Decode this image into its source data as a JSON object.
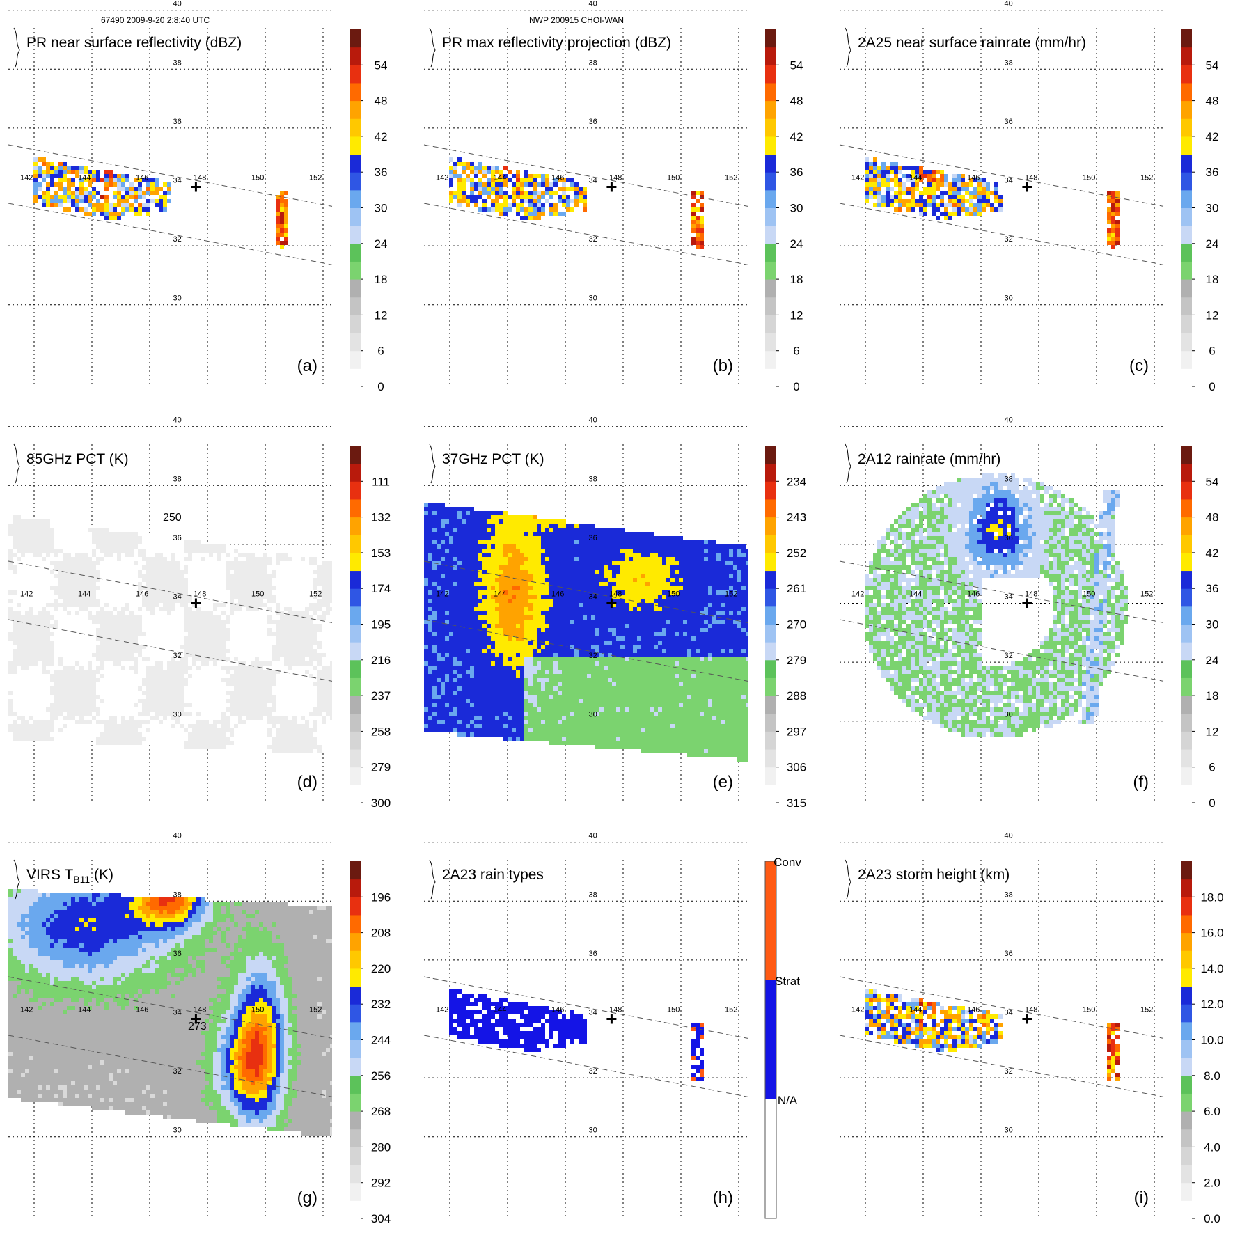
{
  "header": {
    "orbit_info": "67490 2009-9-20 2:8:40 UTC",
    "storm_info": "NWP 200915 CHOI-WAN"
  },
  "colors": {
    "ramp_gray": [
      "#f7f7f7",
      "#d9d9d9",
      "#b0b0b0"
    ],
    "ramp_green": [
      "#7bd36f",
      "#5cc25a"
    ],
    "ramp_blue": [
      "#c8d8f5",
      "#6aa8ee",
      "#3a6fe0",
      "#1a2ad8"
    ],
    "ramp_warm": [
      "#ffea00",
      "#ffa300",
      "#ff6a00",
      "#e83010",
      "#b81a0c",
      "#6b1a10"
    ],
    "rain_type_colors": [
      "#ffffff",
      "#1414e6",
      "#ff5a14"
    ]
  },
  "chart_data": [
    {
      "type": "heatmap",
      "panel_label": "(a)",
      "title": "PR near surface reflectivity (dBZ)",
      "field": "pr_near_surface",
      "colorbar_ticks": [
        "0",
        "6",
        "12",
        "18",
        "24",
        "30",
        "36",
        "42",
        "48",
        "54"
      ],
      "colorbar_range": [
        0,
        60
      ],
      "lat_ticks": [
        "30",
        "32",
        "34",
        "36",
        "38",
        "40"
      ],
      "lon_ticks": [
        "142",
        "144",
        "146",
        "148",
        "150",
        "152"
      ],
      "contour_labels": [],
      "storm_center": [
        147.6,
        34.0
      ]
    },
    {
      "type": "heatmap",
      "panel_label": "(b)",
      "title": "PR max reflectivity projection (dBZ)",
      "field": "pr_max_projection",
      "colorbar_ticks": [
        "0",
        "6",
        "12",
        "18",
        "24",
        "30",
        "36",
        "42",
        "48",
        "54"
      ],
      "colorbar_range": [
        0,
        60
      ],
      "lat_ticks": [
        "30",
        "32",
        "34",
        "36",
        "38",
        "40"
      ],
      "lon_ticks": [
        "142",
        "144",
        "146",
        "148",
        "150",
        "152"
      ],
      "contour_labels": [],
      "storm_center": [
        147.6,
        34.0
      ]
    },
    {
      "type": "heatmap",
      "panel_label": "(c)",
      "title": "2A25 near surface rainrate (mm/hr)",
      "field": "rainrate_2a25",
      "colorbar_ticks": [
        "0",
        "6",
        "12",
        "18",
        "24",
        "30",
        "36",
        "42",
        "48",
        "54"
      ],
      "colorbar_range": [
        0,
        60
      ],
      "lat_ticks": [
        "30",
        "32",
        "34",
        "36",
        "38",
        "40"
      ],
      "lon_ticks": [
        "142",
        "144",
        "146",
        "148",
        "150",
        "152"
      ],
      "contour_labels": [],
      "storm_center": [
        147.6,
        34.0
      ]
    },
    {
      "type": "heatmap",
      "panel_label": "(d)",
      "title": "85GHz PCT (K)",
      "field": "pct85",
      "colorbar_ticks": [
        "300",
        "279",
        "258",
        "237",
        "216",
        "195",
        "174",
        "153",
        "132",
        "111"
      ],
      "colorbar_range": [
        300,
        90
      ],
      "lat_ticks": [
        "30",
        "32",
        "34",
        "36",
        "38",
        "40"
      ],
      "lon_ticks": [
        "142",
        "144",
        "146",
        "148",
        "150",
        "152"
      ],
      "contour_labels": [
        "250"
      ],
      "storm_center": [
        147.6,
        34.0
      ]
    },
    {
      "type": "heatmap",
      "panel_label": "(e)",
      "title": "37GHz PCT (K)",
      "field": "pct37",
      "colorbar_ticks": [
        "315",
        "306",
        "297",
        "288",
        "279",
        "270",
        "261",
        "252",
        "243",
        "234"
      ],
      "colorbar_range": [
        315,
        225
      ],
      "lat_ticks": [
        "30",
        "32",
        "34",
        "36",
        "38",
        "40"
      ],
      "lon_ticks": [
        "142",
        "144",
        "146",
        "148",
        "150",
        "152"
      ],
      "contour_labels": [],
      "storm_center": [
        147.6,
        34.0
      ]
    },
    {
      "type": "heatmap",
      "panel_label": "(f)",
      "title": "2A12 rainrate (mm/hr)",
      "field": "rainrate_2a12",
      "colorbar_ticks": [
        "0",
        "6",
        "12",
        "18",
        "24",
        "30",
        "36",
        "42",
        "48",
        "54"
      ],
      "colorbar_range": [
        0,
        60
      ],
      "lat_ticks": [
        "30",
        "32",
        "34",
        "36",
        "38",
        "40"
      ],
      "lon_ticks": [
        "142",
        "144",
        "146",
        "148",
        "150",
        "152"
      ],
      "contour_labels": [],
      "storm_center": [
        147.6,
        34.0
      ]
    },
    {
      "type": "heatmap",
      "panel_label": "(g)",
      "title": "VIRS T",
      "title_subscript": "B11",
      "title_suffix": " (K)",
      "field": "virs_tb11",
      "colorbar_ticks": [
        "304",
        "292",
        "280",
        "268",
        "256",
        "244",
        "232",
        "220",
        "208",
        "196"
      ],
      "colorbar_range": [
        304,
        184
      ],
      "lat_ticks": [
        "30",
        "32",
        "34",
        "36",
        "38",
        "40"
      ],
      "lon_ticks": [
        "142",
        "144",
        "146",
        "148",
        "150",
        "152"
      ],
      "contour_labels": [
        "273"
      ],
      "storm_center": [
        147.6,
        34.0
      ]
    },
    {
      "type": "heatmap",
      "panel_label": "(h)",
      "title": "2A23 rain types",
      "field": "rain_type",
      "colorbar_ticks": [
        "N/A",
        "Strat",
        "Conv"
      ],
      "colorbar_range": [
        0,
        2
      ],
      "lat_ticks": [
        "30",
        "32",
        "34",
        "36",
        "38",
        "40"
      ],
      "lon_ticks": [
        "142",
        "144",
        "146",
        "148",
        "150",
        "152"
      ],
      "contour_labels": [],
      "storm_center": [
        147.6,
        34.0
      ]
    },
    {
      "type": "heatmap",
      "panel_label": "(i)",
      "title": "2A23 storm height (km)",
      "field": "storm_height",
      "colorbar_ticks": [
        "0.0",
        "2.0",
        "4.0",
        "6.0",
        "8.0",
        "10.0",
        "12.0",
        "14.0",
        "16.0",
        "18.0"
      ],
      "colorbar_range": [
        0,
        20
      ],
      "lat_ticks": [
        "30",
        "32",
        "34",
        "36",
        "38",
        "40"
      ],
      "lon_ticks": [
        "142",
        "144",
        "146",
        "148",
        "150",
        "152"
      ],
      "contour_labels": [],
      "storm_center": [
        147.6,
        34.0
      ]
    }
  ]
}
